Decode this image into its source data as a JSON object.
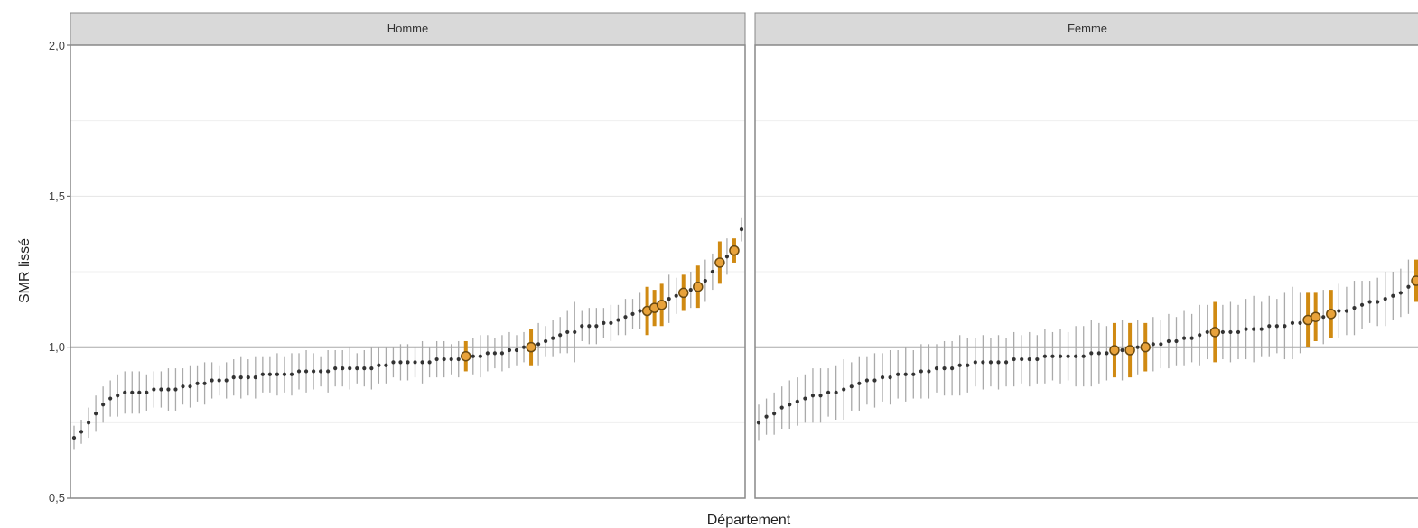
{
  "chart_data": {
    "type": "scatter",
    "subtype": "point-range (smoothed SMR with interval, sorted, faceted)",
    "xlabel": "Département",
    "ylabel": "SMR lissé",
    "ylim": [
      0.5,
      2.0
    ],
    "yticks": [
      "0,5",
      "1,0",
      "1,5",
      "2,0"
    ],
    "reference_line": 1.0,
    "grid": true,
    "legend": "none",
    "colors": {
      "point": "#333333",
      "interval": "#aaaaaa",
      "highlight_fill": "#e8a23a",
      "highlight_bar": "#d08a12",
      "highlight_edge": "#6b4a10",
      "strip": "#d9d9d9",
      "reference_line": "#555555"
    },
    "facets": [
      {
        "strip": "Homme",
        "values": [
          0.7,
          0.72,
          0.75,
          0.78,
          0.81,
          0.83,
          0.84,
          0.85,
          0.85,
          0.85,
          0.85,
          0.86,
          0.86,
          0.86,
          0.86,
          0.87,
          0.87,
          0.88,
          0.88,
          0.89,
          0.89,
          0.89,
          0.9,
          0.9,
          0.9,
          0.9,
          0.91,
          0.91,
          0.91,
          0.91,
          0.91,
          0.92,
          0.92,
          0.92,
          0.92,
          0.92,
          0.93,
          0.93,
          0.93,
          0.93,
          0.93,
          0.93,
          0.94,
          0.94,
          0.95,
          0.95,
          0.95,
          0.95,
          0.95,
          0.95,
          0.96,
          0.96,
          0.96,
          0.96,
          0.97,
          0.97,
          0.97,
          0.98,
          0.98,
          0.98,
          0.99,
          0.99,
          1.0,
          1.0,
          1.01,
          1.02,
          1.03,
          1.04,
          1.05,
          1.05,
          1.07,
          1.07,
          1.07,
          1.08,
          1.08,
          1.09,
          1.1,
          1.11,
          1.12,
          1.12,
          1.13,
          1.14,
          1.16,
          1.17,
          1.18,
          1.19,
          1.2,
          1.22,
          1.25,
          1.28,
          1.3,
          1.32,
          1.39
        ],
        "ci_half_width": [
          0.04,
          0.04,
          0.05,
          0.06,
          0.06,
          0.06,
          0.07,
          0.07,
          0.07,
          0.07,
          0.06,
          0.06,
          0.06,
          0.07,
          0.07,
          0.06,
          0.07,
          0.06,
          0.07,
          0.06,
          0.05,
          0.06,
          0.06,
          0.07,
          0.06,
          0.07,
          0.06,
          0.06,
          0.07,
          0.06,
          0.07,
          0.06,
          0.07,
          0.06,
          0.05,
          0.07,
          0.06,
          0.06,
          0.07,
          0.05,
          0.06,
          0.07,
          0.06,
          0.06,
          0.05,
          0.06,
          0.06,
          0.05,
          0.07,
          0.05,
          0.06,
          0.06,
          0.05,
          0.06,
          0.05,
          0.06,
          0.07,
          0.06,
          0.05,
          0.06,
          0.06,
          0.05,
          0.05,
          0.06,
          0.07,
          0.05,
          0.06,
          0.06,
          0.07,
          0.1,
          0.05,
          0.06,
          0.06,
          0.05,
          0.06,
          0.05,
          0.06,
          0.05,
          0.06,
          0.08,
          0.06,
          0.07,
          0.08,
          0.06,
          0.06,
          0.06,
          0.07,
          0.07,
          0.06,
          0.07,
          0.06,
          0.04,
          0.04
        ],
        "highlighted_indices": [
          54,
          63,
          79,
          80,
          81,
          84,
          86,
          89,
          91
        ]
      },
      {
        "strip": "Femme",
        "values": [
          0.75,
          0.77,
          0.78,
          0.8,
          0.81,
          0.82,
          0.83,
          0.84,
          0.84,
          0.85,
          0.85,
          0.86,
          0.87,
          0.88,
          0.89,
          0.89,
          0.9,
          0.9,
          0.91,
          0.91,
          0.91,
          0.92,
          0.92,
          0.93,
          0.93,
          0.93,
          0.94,
          0.94,
          0.95,
          0.95,
          0.95,
          0.95,
          0.95,
          0.96,
          0.96,
          0.96,
          0.96,
          0.97,
          0.97,
          0.97,
          0.97,
          0.97,
          0.97,
          0.98,
          0.98,
          0.98,
          0.99,
          0.99,
          0.99,
          1.0,
          1.0,
          1.01,
          1.01,
          1.02,
          1.02,
          1.03,
          1.03,
          1.04,
          1.05,
          1.05,
          1.05,
          1.05,
          1.05,
          1.06,
          1.06,
          1.06,
          1.07,
          1.07,
          1.07,
          1.08,
          1.08,
          1.09,
          1.1,
          1.1,
          1.11,
          1.12,
          1.12,
          1.13,
          1.14,
          1.15,
          1.15,
          1.16,
          1.17,
          1.18,
          1.2,
          1.22
        ],
        "ci_half_width": [
          0.06,
          0.06,
          0.07,
          0.07,
          0.08,
          0.08,
          0.08,
          0.09,
          0.09,
          0.08,
          0.09,
          0.1,
          0.08,
          0.09,
          0.08,
          0.09,
          0.08,
          0.09,
          0.08,
          0.09,
          0.08,
          0.09,
          0.09,
          0.08,
          0.09,
          0.09,
          0.1,
          0.09,
          0.08,
          0.09,
          0.08,
          0.09,
          0.08,
          0.09,
          0.08,
          0.09,
          0.08,
          0.09,
          0.08,
          0.09,
          0.08,
          0.1,
          0.1,
          0.11,
          0.1,
          0.09,
          0.09,
          0.1,
          0.09,
          0.09,
          0.08,
          0.09,
          0.08,
          0.09,
          0.08,
          0.09,
          0.08,
          0.1,
          0.09,
          0.1,
          0.09,
          0.1,
          0.09,
          0.1,
          0.11,
          0.09,
          0.1,
          0.09,
          0.11,
          0.12,
          0.1,
          0.09,
          0.08,
          0.09,
          0.08,
          0.09,
          0.08,
          0.09,
          0.08,
          0.07,
          0.08,
          0.09,
          0.08,
          0.08,
          0.09,
          0.07
        ],
        "highlighted_indices": [
          46,
          48,
          50,
          59,
          71,
          72,
          74,
          85
        ]
      }
    ]
  }
}
